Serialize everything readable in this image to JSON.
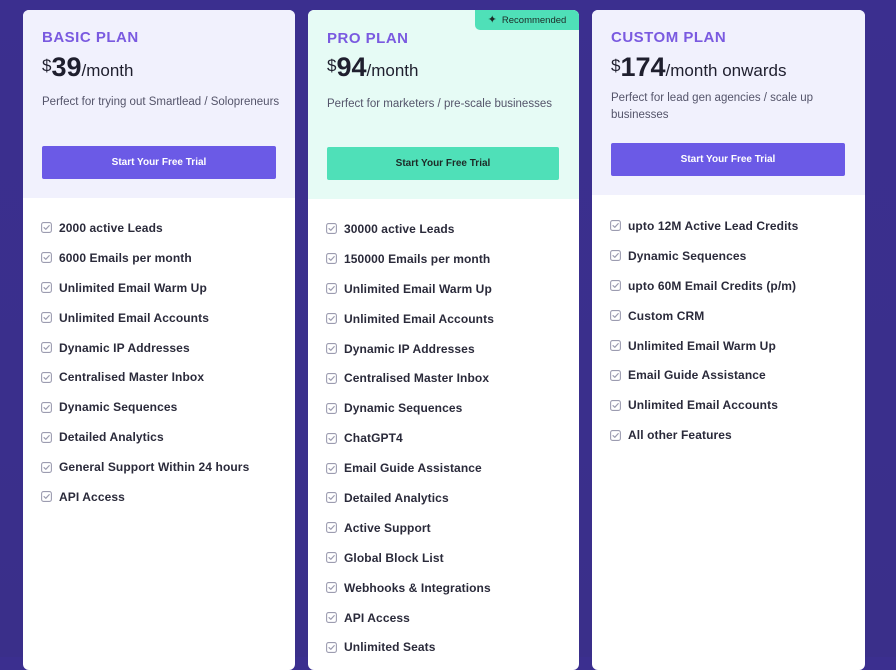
{
  "plans": [
    {
      "title": "BASIC PLAN",
      "currency": "$",
      "amount": "39",
      "period": "/month",
      "description": "Perfect for trying out Smartlead / Solopreneurs",
      "cta": "Start Your Free Trial",
      "features": [
        "2000 active Leads",
        "6000 Emails per month",
        "Unlimited Email Warm Up",
        "Unlimited Email Accounts",
        "Dynamic IP Addresses",
        "Centralised Master Inbox",
        "Dynamic Sequences",
        "Detailed Analytics",
        "General Support Within 24 hours",
        "API Access"
      ]
    },
    {
      "title": "PRO PLAN",
      "badge": "Recommended",
      "currency": "$",
      "amount": "94",
      "period": "/month",
      "description": "Perfect for marketers / pre-scale businesses",
      "cta": "Start Your Free Trial",
      "features": [
        "30000 active Leads",
        "150000 Emails per month",
        "Unlimited Email Warm Up",
        "Unlimited Email Accounts",
        "Dynamic IP Addresses",
        "Centralised Master Inbox",
        "Dynamic Sequences",
        "ChatGPT4",
        "Email Guide Assistance",
        "Detailed Analytics",
        "Active Support",
        "Global Block List",
        "Webhooks & Integrations",
        "API Access",
        "Unlimited Seats"
      ]
    },
    {
      "title": "CUSTOM PLAN",
      "currency": "$",
      "amount": "174",
      "period": "/month onwards",
      "description": "Perfect for lead gen agencies / scale up businesses",
      "cta": "Start Your Free Trial",
      "features": [
        "upto 12M Active Lead Credits",
        "Dynamic Sequences",
        "upto 60M Email Credits (p/m)",
        "Custom CRM",
        "Unlimited Email Warm Up",
        "Email Guide Assistance",
        "Unlimited Email Accounts",
        "All other Features"
      ]
    }
  ],
  "icons": {
    "feature": "check-square-icon",
    "badge": "sparkle-icon"
  },
  "colors": {
    "accent": "#6b5ae6",
    "pro_accent": "#4fe0b8",
    "title": "#7a5ae0",
    "background": "#3a2e8c"
  }
}
